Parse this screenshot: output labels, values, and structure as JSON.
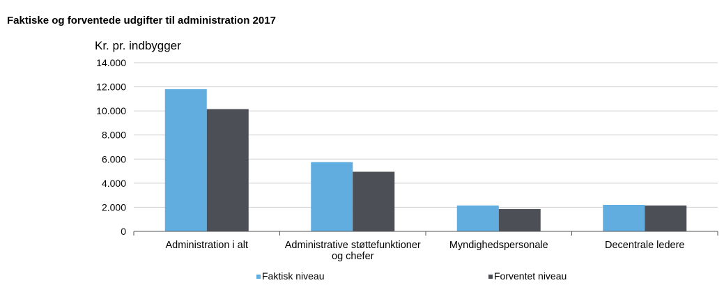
{
  "chart_data": {
    "type": "bar",
    "title": "Faktiske og forventede udgifter til administration 2017",
    "ylabel": "Kr. pr. indbygger",
    "xlabel": "",
    "ylim": [
      0,
      14000
    ],
    "yticks": [
      0,
      2000,
      4000,
      6000,
      8000,
      10000,
      12000,
      14000
    ],
    "ytick_labels": [
      "0",
      "2.000",
      "4.000",
      "6.000",
      "8.000",
      "10.000",
      "12.000",
      "14.000"
    ],
    "grid": true,
    "legend_position": "bottom",
    "categories": [
      [
        "Administration i alt"
      ],
      [
        "Administrative støttefunktioner",
        "og chefer"
      ],
      [
        "Myndighedspersonale"
      ],
      [
        "Decentrale ledere"
      ]
    ],
    "series": [
      {
        "name": "Faktisk niveau",
        "color": "#62ade0",
        "values": [
          11800,
          5750,
          2150,
          2200
        ]
      },
      {
        "name": "Forventet niveau",
        "color": "#4c4f56",
        "values": [
          10150,
          4950,
          1850,
          2150
        ]
      }
    ]
  }
}
